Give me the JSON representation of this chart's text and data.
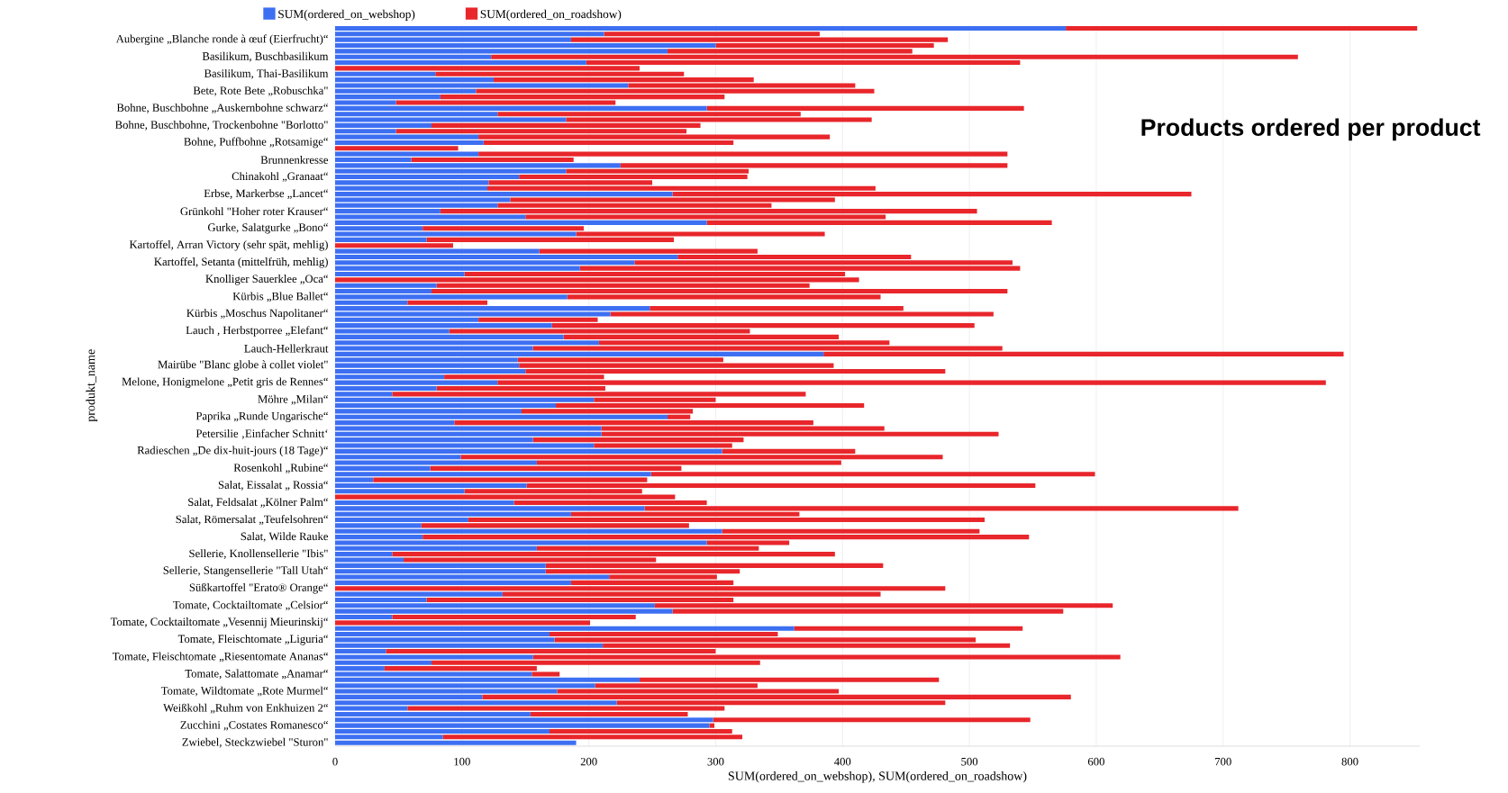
{
  "chart_data": {
    "type": "bar",
    "orientation": "horizontal",
    "stacked": true,
    "title": "Products ordered per product",
    "xlabel": "SUM(ordered_on_webshop), SUM(ordered_on_roadshow)",
    "ylabel": "produkt_name",
    "categories": [
      null,
      null,
      "Aubergine „Blanche ronde à œuf (Eierfrucht)“",
      null,
      null,
      "Basilikum, Buschbasilikum",
      null,
      null,
      "Basilikum, Thai-Basilikum",
      null,
      null,
      "Bete, Rote Bete „Robuschka\"",
      null,
      null,
      "Bohne, Buschbohne „Auskernbohne schwarz“",
      null,
      null,
      "Bohne, Buschbohne, Trockenbohne \"Borlotto\"",
      null,
      null,
      "Bohne, Puffbohne „Rotsamige“",
      null,
      null,
      "Brunnenkresse",
      null,
      null,
      "Chinakohl „Granaat“",
      null,
      null,
      "Erbse, Markerbse „Lancet“",
      null,
      null,
      "Grünkohl \"Hoher roter Krauser“",
      null,
      null,
      "Gurke, Salatgurke „Bono“",
      null,
      null,
      "Kartoffel, Arran Victory (sehr spät, mehlig)",
      null,
      null,
      "Kartoffel, Setanta (mittelfrüh, mehlig)",
      null,
      null,
      "Knolliger Sauerklee „Oca“",
      null,
      null,
      "Kürbis „Blue Ballet“",
      null,
      null,
      "Kürbis „Moschus Napolitaner“",
      null,
      null,
      "Lauch , Herbstporree „Elefant“",
      null,
      null,
      "Lauch-Hellerkraut",
      null,
      null,
      "Mairübe \"Blanc globe à collet violet\"",
      null,
      null,
      "Melone, Honigmelone „Petit gris de Rennes“",
      null,
      null,
      "Möhre „Milan“",
      null,
      null,
      "Paprika „Runde Ungarische“",
      null,
      null,
      "Petersilie ‚Einfacher Schnitt‘",
      null,
      null,
      "Radieschen „De dix-huit-jours (18 Tage)“",
      null,
      null,
      "Rosenkohl „Rubine“",
      null,
      null,
      "Salat, Eissalat „ Rossia“",
      null,
      null,
      "Salat, Feldsalat „Kölner Palm“",
      null,
      null,
      "Salat, Römersalat „Teufelsohren“",
      null,
      null,
      "Salat, Wilde Rauke",
      null,
      null,
      "Sellerie, Knollensellerie \"Ibis\"",
      null,
      null,
      "Sellerie, Stangensellerie \"Tall Utah“",
      null,
      null,
      "Süßkartoffel \"Erato® Orange“",
      null,
      null,
      "Tomate, Cocktailtomate „Celsior“",
      null,
      null,
      "Tomate, Cocktailtomate „Vesennij Mieurinskij“",
      null,
      null,
      "Tomate, Fleischtomate „Liguria“",
      null,
      null,
      "Tomate, Fleischtomate „Riesentomate Ananas“",
      null,
      null,
      "Tomate, Salattomate „Anamar“",
      null,
      null,
      "Tomate, Wildtomate „Rote Murmel“",
      null,
      null,
      "Weißkohl „Ruhm von Enkhuizen 2“",
      null,
      null,
      "Zucchini „Costates Romanesco“",
      null,
      null,
      "Zwiebel, Steckzwiebel \"Sturon\""
    ],
    "series": [
      {
        "name": "SUM(ordered_on_webshop)",
        "color": "#3d6ff2",
        "values": [
          576,
          212,
          186,
          300,
          262,
          123,
          198,
          0,
          79,
          125,
          231,
          111,
          83,
          48,
          293,
          128,
          182,
          76,
          48,
          113,
          117,
          0,
          113,
          60,
          225,
          182,
          145,
          121,
          120,
          266,
          138,
          128,
          83,
          150,
          293,
          69,
          190,
          72,
          0,
          161,
          270,
          236,
          193,
          102,
          0,
          80,
          76,
          183,
          57,
          248,
          217,
          113,
          171,
          90,
          180,
          208,
          156,
          385,
          144,
          145,
          150,
          86,
          128,
          80,
          45,
          204,
          174,
          147,
          262,
          94,
          210,
          210,
          156,
          204,
          305,
          99,
          159,
          75,
          249,
          30,
          151,
          102,
          0,
          141,
          244,
          186,
          105,
          68,
          305,
          69,
          293,
          159,
          45,
          54,
          166,
          166,
          216,
          186,
          0,
          132,
          72,
          252,
          266,
          45,
          0,
          362,
          169,
          173,
          211,
          40,
          156,
          76,
          39,
          155,
          240,
          205,
          175,
          116,
          222,
          57,
          154,
          298,
          295,
          169,
          85,
          190
        ]
      },
      {
        "name": "SUM(ordered_on_roadshow)",
        "color": "#e8262b",
        "values": [
          277,
          170,
          297,
          172,
          193,
          636,
          342,
          240,
          196,
          205,
          179,
          314,
          224,
          173,
          250,
          239,
          241,
          212,
          229,
          277,
          197,
          97,
          417,
          128,
          305,
          144,
          180,
          129,
          306,
          409,
          256,
          216,
          423,
          284,
          272,
          127,
          196,
          195,
          93,
          172,
          184,
          298,
          347,
          300,
          413,
          294,
          454,
          247,
          63,
          200,
          302,
          94,
          333,
          237,
          217,
          229,
          370,
          410,
          162,
          248,
          331,
          126,
          653,
          133,
          326,
          96,
          243,
          135,
          18,
          283,
          223,
          313,
          166,
          109,
          105,
          380,
          240,
          198,
          350,
          216,
          401,
          140,
          268,
          152,
          468,
          180,
          407,
          211,
          203,
          478,
          65,
          175,
          349,
          199,
          266,
          153,
          85,
          128,
          481,
          298,
          242,
          361,
          308,
          192,
          201,
          180,
          180,
          332,
          321,
          260,
          463,
          259,
          120,
          22,
          236,
          128,
          222,
          464,
          259,
          250,
          124,
          250,
          4,
          144,
          236,
          0
        ]
      }
    ],
    "xlim": [
      0,
      855
    ],
    "xticks": [
      0,
      100,
      200,
      300,
      400,
      500,
      600,
      700,
      800
    ],
    "grid": "x",
    "legend": "top"
  }
}
